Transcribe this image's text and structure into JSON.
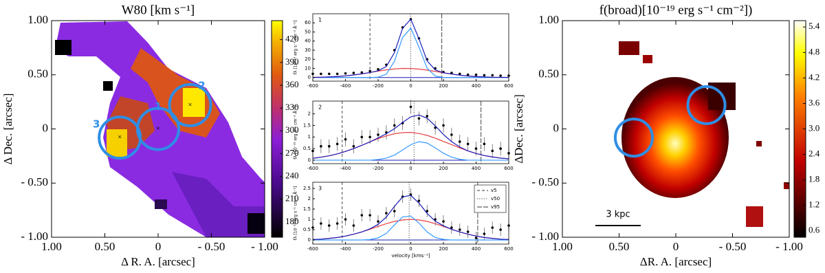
{
  "chart_data": [
    {
      "type": "map",
      "title": "W80 [km s⁻¹]",
      "xlabel": "Δ R. A. [arcsec]",
      "ylabel": "Δ Dec. [arcsec]",
      "xlim": [
        1,
        -1
      ],
      "ylim": [
        -1,
        1
      ],
      "xticks": [
        {
          "value": 1,
          "label": "1.00"
        },
        {
          "value": 0.5,
          "label": "0.50"
        },
        0,
        {
          "value": -0.5,
          "label": "- 0.50"
        },
        {
          "value": -1,
          "label": "- 1.00"
        }
      ],
      "yticks": [
        {
          "value": -1,
          "label": "- 1.00"
        },
        {
          "value": -0.5,
          "label": "- 0.50"
        },
        0,
        {
          "value": 0.5,
          "label": "0.50"
        },
        {
          "value": 1,
          "label": "1.00"
        }
      ],
      "colormap": "gnuplot",
      "clim": [
        160,
        445
      ],
      "cticks": [
        180,
        210,
        240,
        270,
        300,
        330,
        360,
        390,
        420
      ],
      "aperture_color": "#2f8ee5",
      "aperture_centers": true,
      "apertures": [
        {
          "label": "1",
          "x": 0,
          "y": 0
        },
        {
          "label": "2",
          "x": -0.3,
          "y": 0.22
        },
        {
          "label": "3",
          "x": 0.36,
          "y": -0.08
        }
      ]
    },
    {
      "type": "spectrum",
      "panel": "1",
      "ylabel": "fλ [10⁻¹⁹ erg s⁻¹ cm⁻² Å⁻¹]",
      "x": [
        -600,
        -550,
        -500,
        -450,
        -400,
        -350,
        -300,
        -250,
        -200,
        -150,
        -100,
        -50,
        0,
        50,
        100,
        150,
        200,
        250,
        300,
        350,
        400,
        450,
        500,
        550,
        600
      ],
      "xlim": [
        -600,
        600
      ],
      "xticks": [
        -600,
        -400,
        -200,
        0,
        200,
        400,
        600
      ],
      "ylim": [
        -4,
        70
      ],
      "yticks": [
        0,
        10,
        20,
        30,
        40,
        50,
        60
      ],
      "vlines": [
        -250,
        0,
        190
      ],
      "series": [
        {
          "color": "#000000",
          "markers": true,
          "values": [
            4,
            4,
            4,
            4,
            4.5,
            5,
            5.5,
            7,
            9,
            14,
            30,
            55,
            64,
            43,
            20,
            10,
            6,
            5,
            4,
            3,
            3,
            2.5,
            2.5,
            2,
            2
          ]
        },
        {
          "color": "#e84040",
          "values": [
            0.17,
            0.34,
            0.63,
            1.1,
            1.81,
            2.78,
            4.02,
            5.46,
            6.97,
            8.35,
            9.41,
            9.95,
            9.89,
            9.23,
            8.1,
            6.67,
            5.16,
            3.75,
            2.56,
            1.64,
            0.99,
            0.56,
            0.3,
            0.15,
            0.07
          ]
        },
        {
          "color": "#3399ff",
          "values": [
            0,
            0,
            0,
            0,
            0,
            0,
            0,
            0,
            0.4,
            3.6,
            17.9,
            44,
            54.2,
            33.4,
            10.2,
            1.6,
            0,
            0,
            0,
            0,
            0,
            0,
            0,
            0,
            0
          ]
        },
        {
          "color": "#1a1ab8",
          "values": [
            0.2,
            0.3,
            0.6,
            1.1,
            1.8,
            2.8,
            4,
            5.5,
            7.4,
            12,
            27.3,
            54,
            64.1,
            42.6,
            18.3,
            8.3,
            5.2,
            3.8,
            2.6,
            1.6,
            1,
            0.6,
            0.3,
            0.2,
            0.1
          ]
        }
      ]
    },
    {
      "type": "spectrum",
      "panel": "2",
      "ylabel": "fλ [10⁻¹⁹ erg s⁻¹ cm⁻² Å⁻¹]",
      "x": [
        -600,
        -550,
        -500,
        -450,
        -400,
        -350,
        -300,
        -250,
        -200,
        -150,
        -100,
        -50,
        0,
        50,
        100,
        150,
        200,
        250,
        300,
        350,
        400,
        450,
        500,
        550,
        600
      ],
      "xlim": [
        -600,
        600
      ],
      "xticks": [
        -600,
        -400,
        -200,
        0,
        200,
        400,
        600
      ],
      "ylim": [
        -0.15,
        2.55
      ],
      "yticks": [
        0,
        0.5,
        1,
        1.5,
        2
      ],
      "vlines": [
        -420,
        20,
        430
      ],
      "series": [
        {
          "color": "#000000",
          "markers": true,
          "values": [
            0.4,
            0.6,
            0.6,
            0.7,
            0.9,
            0.6,
            1,
            1,
            1.1,
            1.2,
            1.5,
            1.6,
            2.3,
            1.8,
            1.9,
            1.4,
            1.5,
            1.1,
            0.8,
            0.7,
            0.5,
            0.7,
            0.4,
            0.5,
            0.3
          ],
          "errors": [
            0.3,
            0.3,
            0.3,
            0.3,
            0.3,
            0.3,
            0.3,
            0.3,
            0.3,
            0.3,
            0.3,
            0.3,
            0.3,
            0.3,
            0.3,
            0.3,
            0.3,
            0.3,
            0.3,
            0.3,
            0.3,
            0.3,
            0.3,
            0.3,
            0.3
          ]
        },
        {
          "color": "#e84040",
          "values": [
            0.08,
            0.13,
            0.19,
            0.27,
            0.38,
            0.5,
            0.64,
            0.79,
            0.93,
            1.05,
            1.14,
            1.19,
            1.2,
            1.15,
            1.07,
            0.95,
            0.81,
            0.67,
            0.53,
            0.4,
            0.29,
            0.2,
            0.14,
            0.09,
            0.06
          ]
        },
        {
          "color": "#3399ff",
          "values": [
            0,
            0,
            0,
            0,
            0,
            0,
            0,
            0,
            0.03,
            0.09,
            0.22,
            0.44,
            0.67,
            0.8,
            0.74,
            0.53,
            0.3,
            0.13,
            0.04,
            0,
            0,
            0,
            0,
            0,
            0
          ]
        },
        {
          "color": "#1a1ab8",
          "values": [
            0.08,
            0.13,
            0.19,
            0.27,
            0.38,
            0.5,
            0.64,
            0.79,
            0.96,
            1.14,
            1.36,
            1.63,
            1.87,
            1.95,
            1.81,
            1.48,
            1.11,
            0.8,
            0.57,
            0.4,
            0.29,
            0.2,
            0.14,
            0.09,
            0.06
          ]
        }
      ]
    },
    {
      "type": "spectrum",
      "panel": "3",
      "ylabel": "fλ [10⁻¹⁹ erg s⁻¹ cm⁻² Å⁻¹]",
      "xlabel": "velocity [kms⁻¹]",
      "x": [
        -600,
        -550,
        -500,
        -450,
        -400,
        -350,
        -300,
        -250,
        -200,
        -150,
        -100,
        -50,
        0,
        50,
        100,
        150,
        200,
        250,
        300,
        350,
        400,
        450,
        500,
        550,
        600
      ],
      "xlim": [
        -600,
        600
      ],
      "xticks": [
        -600,
        -400,
        -200,
        0,
        200,
        400,
        600
      ],
      "ylim": [
        -0.2,
        2.8
      ],
      "yticks": [
        0,
        0.5,
        1,
        1.5,
        2,
        2.5
      ],
      "vlines": [
        -420,
        -10,
        410
      ],
      "legend": "upper right",
      "legend_labels": [
        "v5",
        "v50",
        "v95"
      ],
      "series": [
        {
          "color": "#000000",
          "markers": true,
          "values": [
            0.6,
            0.8,
            0.7,
            0.8,
            1,
            0.7,
            1.2,
            1.2,
            0.9,
            1.3,
            1.4,
            2.1,
            2.2,
            1.9,
            1.4,
            1,
            0.9,
            0.6,
            0.5,
            0.4,
            0.1,
            0.3,
            0.6,
            0.5,
            0.7
          ],
          "errors": [
            0.3,
            0.3,
            0.3,
            0.3,
            0.3,
            0.3,
            0.3,
            0.3,
            0.3,
            0.3,
            0.3,
            0.3,
            0.3,
            0.3,
            0.3,
            0.3,
            0.3,
            0.3,
            0.3,
            0.3,
            0.3,
            0.3,
            0.3,
            0.3,
            0.3
          ]
        },
        {
          "color": "#e84040",
          "values": [
            0.02,
            0.04,
            0.08,
            0.12,
            0.19,
            0.28,
            0.39,
            0.52,
            0.66,
            0.79,
            0.9,
            0.97,
            1,
            0.97,
            0.9,
            0.79,
            0.66,
            0.52,
            0.39,
            0.28,
            0.19,
            0.12,
            0.08,
            0.04,
            0.02
          ]
        },
        {
          "color": "#3399ff",
          "values": [
            0,
            0,
            0,
            0,
            0,
            0,
            0,
            0.02,
            0.1,
            0.32,
            0.73,
            1.12,
            1.16,
            0.82,
            0.39,
            0.12,
            0.03,
            0,
            0,
            0,
            0,
            0,
            0,
            0,
            0
          ]
        },
        {
          "color": "#1a1ab8",
          "values": [
            0.02,
            0.04,
            0.08,
            0.12,
            0.19,
            0.28,
            0.39,
            0.54,
            0.76,
            1.11,
            1.63,
            2.09,
            2.16,
            1.79,
            1.29,
            0.91,
            0.69,
            0.52,
            0.39,
            0.28,
            0.19,
            0.12,
            0.08,
            0.04,
            0.02
          ]
        }
      ]
    },
    {
      "type": "map",
      "title": "f(broad)[10⁻¹⁹ erg s⁻¹ cm⁻²])",
      "xlabel": "ΔR. A. [arcsec]",
      "ylabel": "ΔDec. [arcsec]",
      "xlim": [
        1,
        -1
      ],
      "ylim": [
        -1,
        1
      ],
      "xticks": [
        {
          "value": 1,
          "label": "1.00"
        },
        {
          "value": 0.5,
          "label": "0.50"
        },
        0,
        {
          "value": -0.5,
          "label": "- 0.50"
        },
        {
          "value": -1,
          "label": "- 1.00"
        }
      ],
      "yticks": [
        {
          "value": -1,
          "label": "- 1.00"
        },
        {
          "value": -0.5,
          "label": "- 0.50"
        },
        0,
        {
          "value": 0.5,
          "label": "0.50"
        },
        {
          "value": 1,
          "label": "1.00"
        }
      ],
      "colormap": "hot",
      "clim": [
        0.45,
        5.55
      ],
      "cticks": [
        0.6,
        1.2,
        1.8,
        2.4,
        {
          "value": 3,
          "label": "3.0"
        },
        3.6,
        4.2,
        4.8,
        5.4
      ],
      "aperture_color": "#2f8ee5",
      "apertures": [
        {
          "x": 0.37,
          "y": -0.08
        },
        {
          "x": -0.27,
          "y": 0.22
        }
      ],
      "scalebar": "3 kpc"
    }
  ]
}
